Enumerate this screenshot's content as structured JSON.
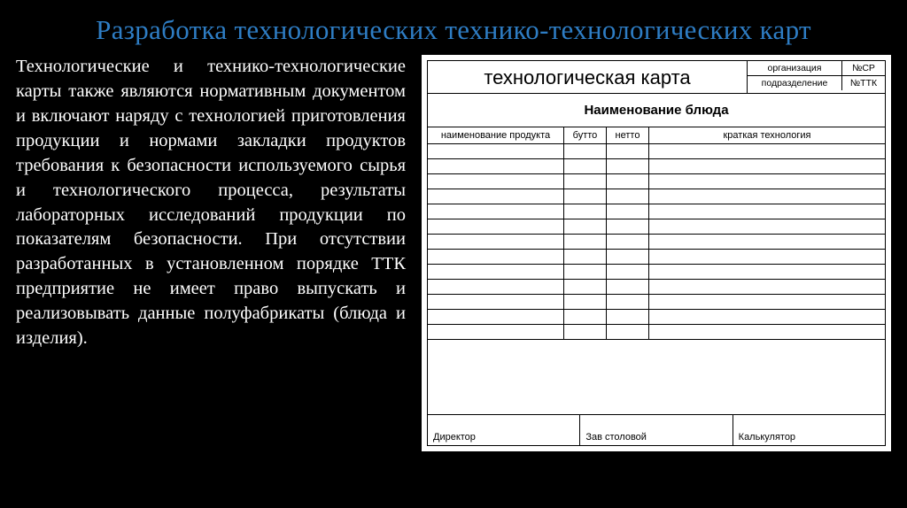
{
  "title": "Разработка технологических технико-технологических карт",
  "paragraph": "Технологические и технико-технологические карты также являются нормативным документом и включают наряду с технологией приготовления продукции и нормами закладки продуктов требования к безопасности используемого сырья и технологического процесса, результаты лабораторных исследований продукции по показателям безопасности. При отсутствии разработанных в установленном порядке ТТК предприятие не имеет право выпускать и реализовывать данные полуфабрикаты (блюда и изделия).",
  "card": {
    "heading": "технологическая карта",
    "meta": [
      {
        "label": "организация",
        "value": "№СР"
      },
      {
        "label": "подразделение",
        "value": "№ТТК"
      }
    ],
    "dish_name": "Наименование блюда",
    "columns": {
      "product": "наименование продукта",
      "brutto": "бутто",
      "netto": "нетто",
      "tech": "краткая технология"
    },
    "empty_rows": 13,
    "signatures": [
      "Директор",
      "Зав столовой",
      "Калькулятор"
    ]
  },
  "colors": {
    "background": "#000000",
    "title": "#2e7dc4",
    "text": "#ffffff",
    "card_bg": "#ffffff",
    "card_border": "#000000"
  }
}
